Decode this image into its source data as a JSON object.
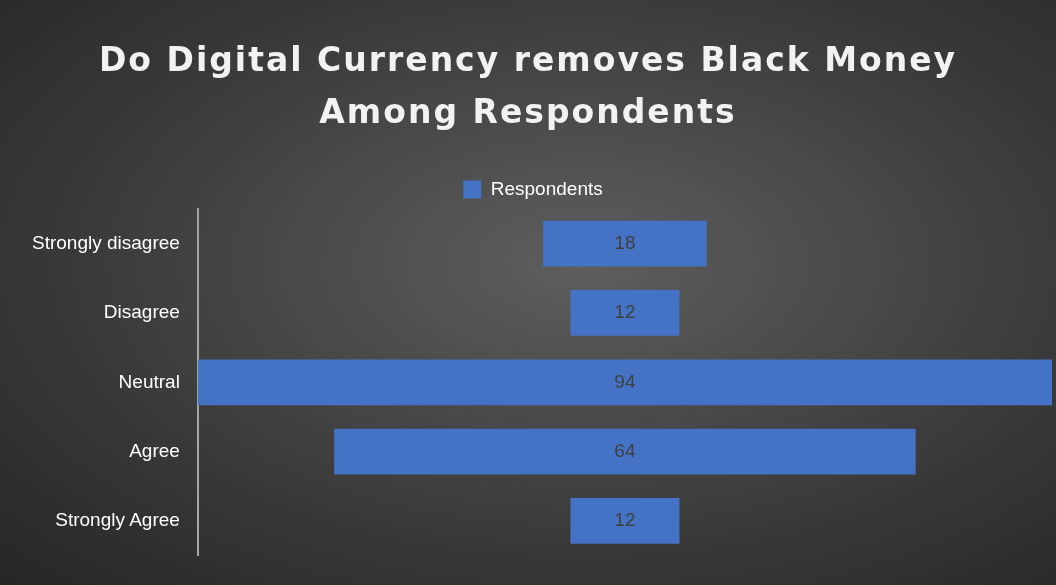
{
  "chart_data": {
    "type": "other",
    "title": "Do Digital Currency removes Black Money Among Respondents",
    "categories": [
      "Strongly disagree",
      "Disagree",
      "Neutral",
      "Agree",
      "Strongly Agree"
    ],
    "series": [
      {
        "name": "Respondents",
        "color": "#4472c4",
        "values": [
          18,
          12,
          94,
          64,
          12
        ]
      }
    ],
    "data_labels": true,
    "legend": "top"
  }
}
